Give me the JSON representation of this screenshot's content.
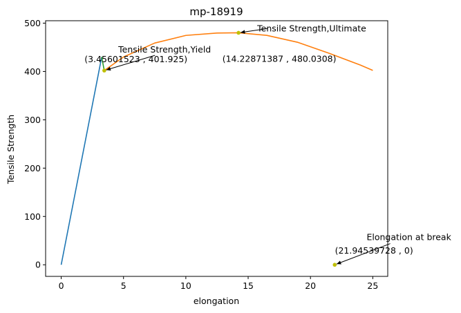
{
  "chart_data": {
    "type": "line",
    "title": "mp-18919",
    "xlabel": "elongation",
    "ylabel": "Tensile Strength",
    "xlim": [
      -1.25,
      26.2
    ],
    "ylim": [
      -24,
      505
    ],
    "x_ticks": [
      0,
      5,
      10,
      15,
      20,
      25
    ],
    "y_ticks": [
      0,
      100,
      200,
      300,
      400,
      500
    ],
    "grid": false,
    "series": [
      {
        "color": "#1f77b4",
        "points": [
          [
            0,
            0
          ],
          [
            3.25,
            430
          ]
        ]
      },
      {
        "color": "#2ca02c",
        "points": [
          [
            3.25,
            430
          ],
          [
            3.456,
            401.9
          ]
        ]
      },
      {
        "color": "#ff7f0e",
        "points": [
          [
            3.456,
            401.925
          ],
          [
            5,
            429.9
          ],
          [
            7.5,
            458.8
          ],
          [
            10,
            474.6
          ],
          [
            12.5,
            479.6
          ],
          [
            14.23,
            480.03
          ],
          [
            16.5,
            474.7
          ],
          [
            19,
            460.2
          ],
          [
            21.5,
            437.6
          ],
          [
            24,
            413.3
          ],
          [
            25,
            402.2
          ]
        ]
      }
    ],
    "markers": [
      {
        "color": "#bfbf00",
        "x": 3.45601523,
        "y": 401.925
      },
      {
        "color": "#bfbf00",
        "x": 14.22871387,
        "y": 480.0308
      },
      {
        "color": "#bfbf00",
        "x": 21.94539728,
        "y": 0
      }
    ],
    "annotations": [
      {
        "label": "Tensile Strength,Yield",
        "coords": "(3.45601523 , 401.925)",
        "target": [
          3.45601523,
          401.925
        ],
        "text_at": [
          8.3,
          439.0
        ],
        "coords_at": [
          6.0,
          419.0
        ]
      },
      {
        "label": "Tensile Strength,Ultimate",
        "coords": "(14.22871387 , 480.0308)",
        "target": [
          14.22871387,
          480.0308
        ],
        "text_at": [
          20.1,
          483.0
        ],
        "coords_at": [
          17.5,
          420.0
        ]
      },
      {
        "label": "Elongation at break",
        "coords": "(21.94539728 , 0)",
        "target": [
          21.94539728,
          0
        ],
        "text_at": [
          27.9,
          51.0
        ],
        "coords_at": [
          25.1,
          23.0
        ]
      }
    ]
  }
}
